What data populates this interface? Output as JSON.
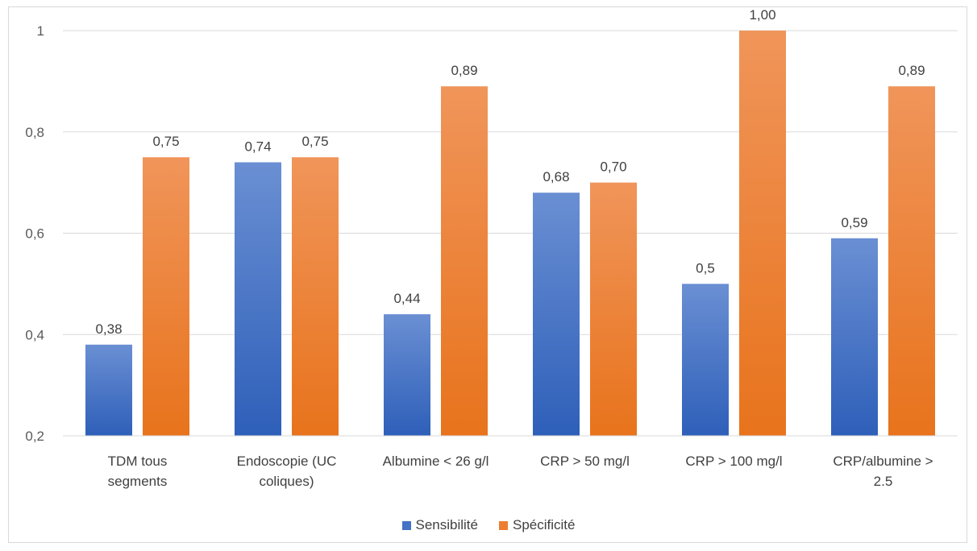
{
  "chart_data": {
    "type": "bar",
    "categories": [
      [
        "TDM tous",
        "segments"
      ],
      [
        "Endoscopie (UC",
        "coliques)"
      ],
      [
        "Albumine < 26 g/l"
      ],
      [
        "CRP > 50 mg/l"
      ],
      [
        "CRP > 100 mg/l"
      ],
      [
        "CRP/albumine >",
        "2.5"
      ]
    ],
    "series": [
      {
        "name": "Sensibilité",
        "color": "#4472c4",
        "values": [
          0.38,
          0.74,
          0.44,
          0.68,
          0.5,
          0.59
        ],
        "labels": [
          "0,38",
          "0,74",
          "0,44",
          "0,68",
          "0,5",
          "0,59"
        ]
      },
      {
        "name": "Spécificité",
        "color": "#ed7d31",
        "values": [
          0.75,
          0.75,
          0.89,
          0.7,
          1.0,
          0.89
        ],
        "labels": [
          "0,75",
          "0,75",
          "0,89",
          "0,70",
          "1,00",
          "0,89"
        ]
      }
    ],
    "ylim": [
      0.2,
      1
    ],
    "yticks": [
      0.2,
      0.4,
      0.6,
      0.8,
      1
    ],
    "ytick_labels": [
      "0,2",
      "0,4",
      "0,6",
      "0,8",
      "1"
    ],
    "grid": true,
    "legend_position": "bottom"
  }
}
